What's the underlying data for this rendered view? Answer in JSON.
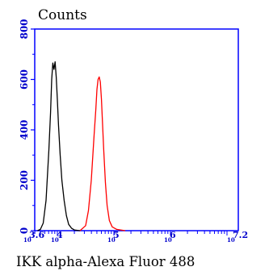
{
  "chart_data": {
    "type": "line",
    "title": "Counts",
    "xlabel": "IKK alpha-Alexa Fluor 488",
    "ylabel": "",
    "x_scale": "log10",
    "xlim_exponent": [
      3.6,
      7.2
    ],
    "ylim": [
      0,
      800
    ],
    "y_ticks": [
      "0",
      "200",
      "400",
      "600",
      "800"
    ],
    "x_ticks": [
      {
        "base": "10",
        "exp": "3.6",
        "value": 3.6
      },
      {
        "base": "10",
        "exp": "4",
        "value": 4
      },
      {
        "base": "10",
        "exp": "5",
        "value": 5
      },
      {
        "base": "10",
        "exp": "6",
        "value": 6
      },
      {
        "base": "10",
        "exp": "7.2",
        "value": 7.2
      }
    ],
    "series": [
      {
        "color": "#000000",
        "x_exponent": [
          3.65,
          3.7,
          3.75,
          3.8,
          3.85,
          3.88,
          3.9,
          3.92,
          3.94,
          3.96,
          3.98,
          4.0,
          4.02,
          4.05,
          4.08,
          4.12,
          4.16,
          4.2,
          4.25,
          4.3,
          4.4
        ],
        "y": [
          0,
          5,
          30,
          120,
          320,
          470,
          600,
          665,
          640,
          670,
          610,
          520,
          420,
          300,
          200,
          120,
          60,
          25,
          10,
          3,
          0
        ]
      },
      {
        "color": "#ff0000",
        "x_exponent": [
          4.4,
          4.5,
          4.55,
          4.6,
          4.65,
          4.68,
          4.7,
          4.72,
          4.74,
          4.76,
          4.78,
          4.8,
          4.82,
          4.85,
          4.88,
          4.92,
          4.97,
          5.05,
          5.2
        ],
        "y": [
          0,
          20,
          80,
          200,
          380,
          480,
          560,
          600,
          610,
          590,
          520,
          420,
          320,
          190,
          100,
          40,
          15,
          5,
          0
        ]
      }
    ]
  }
}
